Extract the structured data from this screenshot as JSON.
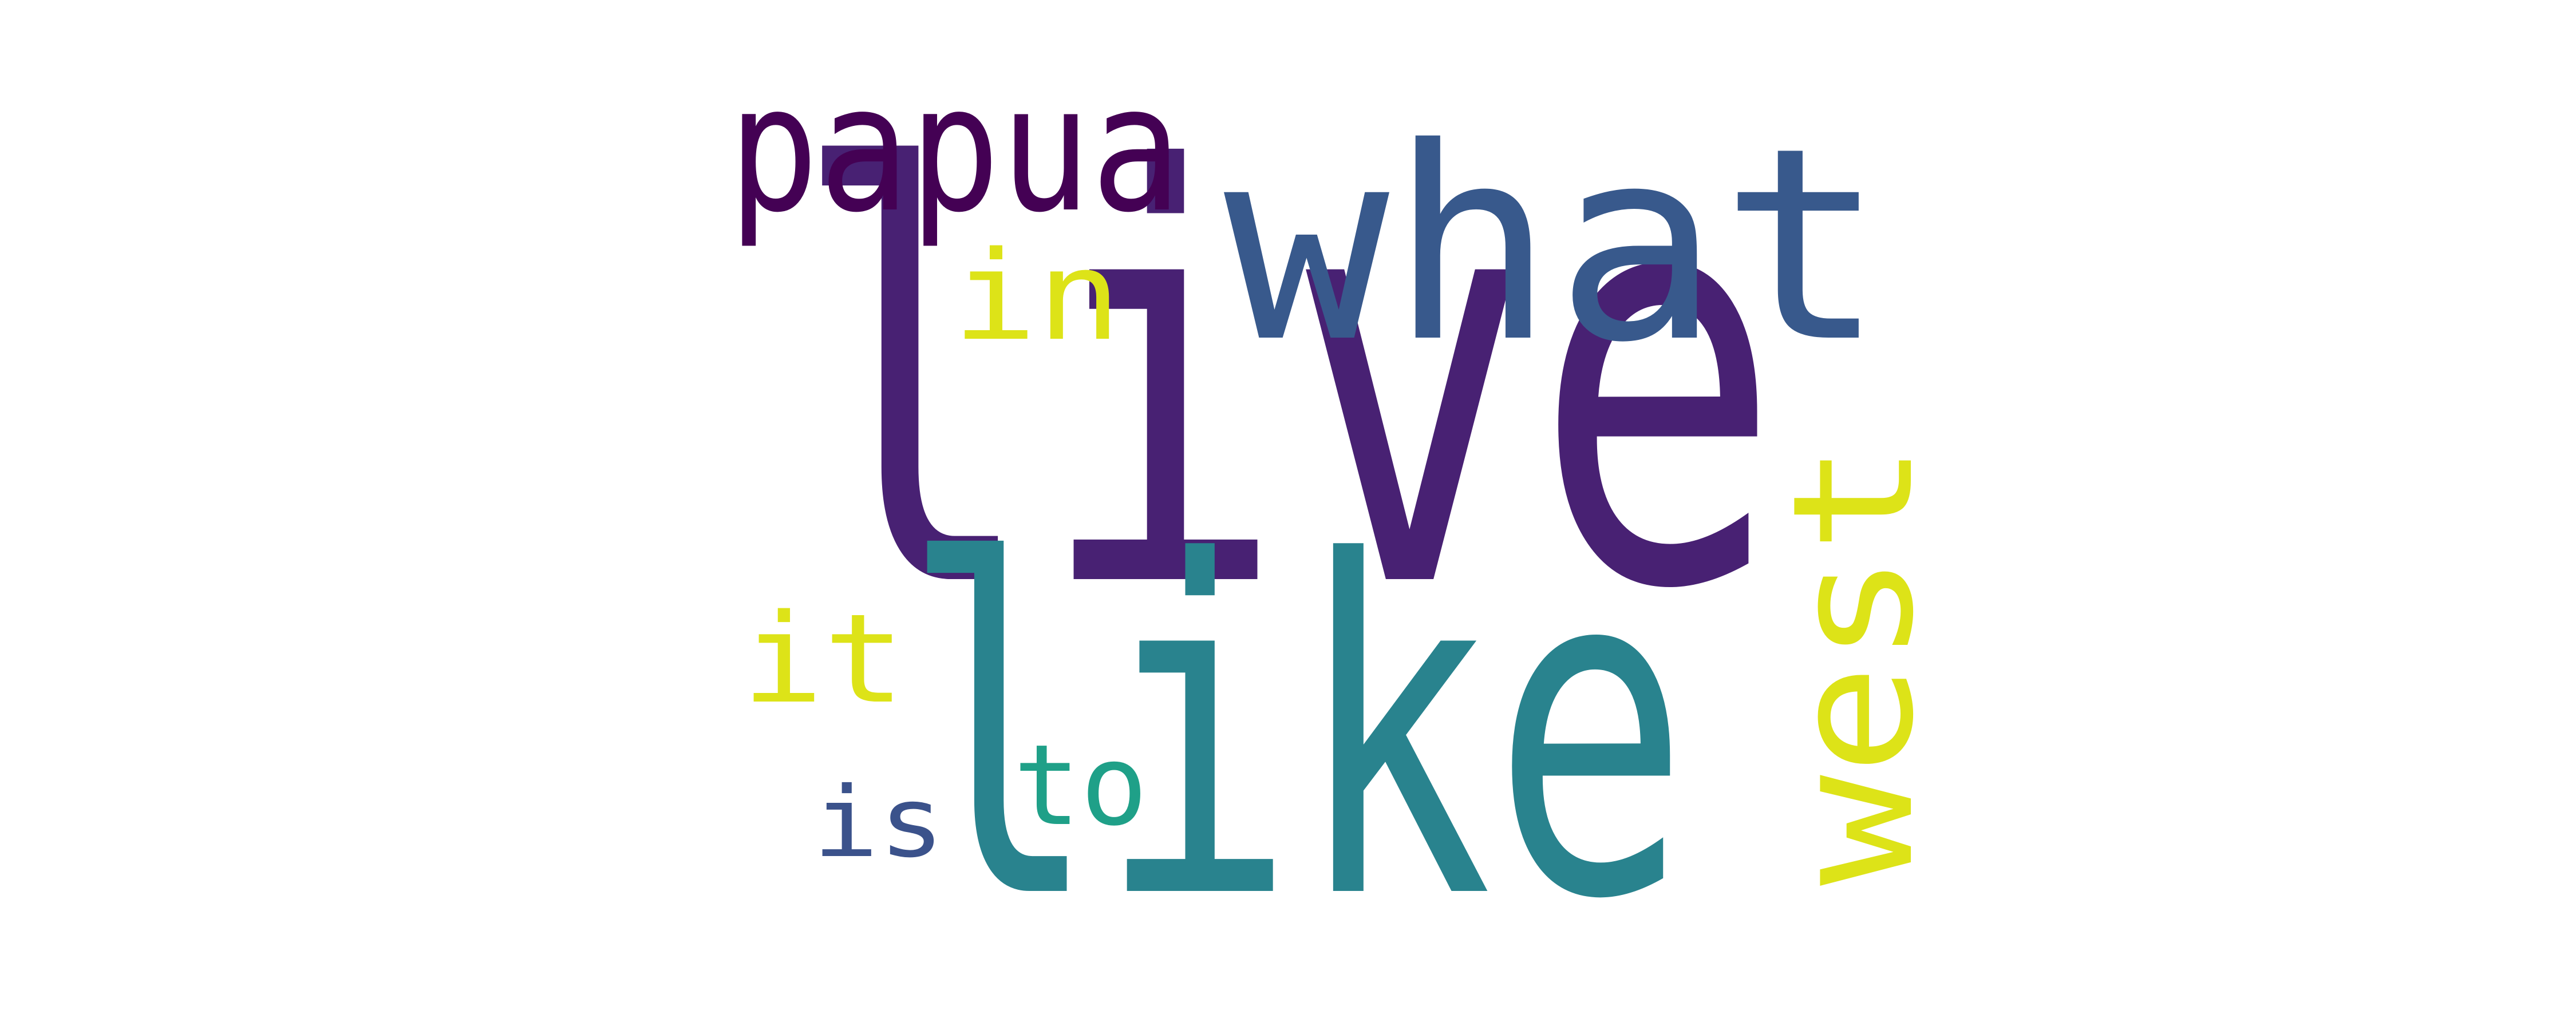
{
  "words": [
    {
      "text": "live",
      "color": "#482173",
      "orientation": "horizontal"
    },
    {
      "text": "like",
      "color": "#29838e",
      "orientation": "horizontal"
    },
    {
      "text": "what",
      "color": "#38598c",
      "orientation": "horizontal"
    },
    {
      "text": "papua",
      "color": "#440154",
      "orientation": "horizontal"
    },
    {
      "text": "west",
      "color": "#dde318",
      "orientation": "vertical"
    },
    {
      "text": "in",
      "color": "#dde318",
      "orientation": "horizontal"
    },
    {
      "text": "it",
      "color": "#dde318",
      "orientation": "horizontal"
    },
    {
      "text": "to",
      "color": "#1fa088",
      "orientation": "horizontal"
    },
    {
      "text": "is",
      "color": "#3b528b",
      "orientation": "horizontal"
    }
  ]
}
